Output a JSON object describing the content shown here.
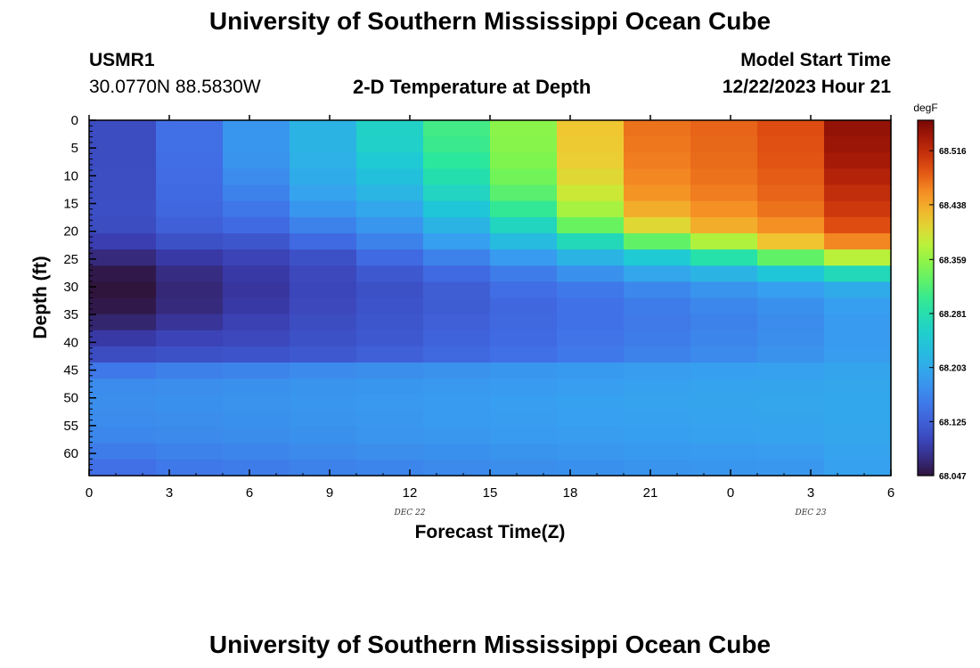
{
  "title": "University of Southern Mississippi Ocean Cube",
  "title_bottom": "University of Southern Mississippi Ocean Cube",
  "station": {
    "name": "USMR1",
    "coords": "30.0770N  88.5830W"
  },
  "plot_title": "2-D Temperature at Depth",
  "model_start": {
    "label": "Model Start Time",
    "value": "12/22/2023 Hour 21"
  },
  "chart_data": {
    "type": "heatmap",
    "title": "2-D Temperature at Depth",
    "xlabel": "Forecast Time(Z)",
    "ylabel": "Depth (ft)",
    "units": "degF",
    "x_tick_labels": [
      "0",
      "3",
      "6",
      "9",
      "12",
      "15",
      "18",
      "21",
      "0",
      "3",
      "6"
    ],
    "date_labels": [
      {
        "text": "DEC 22",
        "at_tick": 4
      },
      {
        "text": "DEC 23",
        "at_tick": 9
      }
    ],
    "y_tick_labels": [
      "0",
      "5",
      "10",
      "15",
      "20",
      "25",
      "30",
      "35",
      "40",
      "45",
      "50",
      "55",
      "60"
    ],
    "ylim": [
      0,
      64
    ],
    "colorbar": {
      "min": 68.047,
      "max": 68.56,
      "ticks": [
        "68.516",
        "68.438",
        "68.359",
        "68.281",
        "68.203",
        "68.125",
        "68.047"
      ]
    },
    "columns": 12,
    "rows": 22,
    "values": [
      [
        68.105,
        68.14,
        68.18,
        68.215,
        68.258,
        68.31,
        68.355,
        68.418,
        68.47,
        68.478,
        68.49,
        68.545
      ],
      [
        68.105,
        68.14,
        68.18,
        68.215,
        68.255,
        68.305,
        68.352,
        68.415,
        68.468,
        68.476,
        68.488,
        68.54
      ],
      [
        68.105,
        68.138,
        68.178,
        68.212,
        68.245,
        68.295,
        68.348,
        68.412,
        68.465,
        68.474,
        68.486,
        68.535
      ],
      [
        68.106,
        68.137,
        68.17,
        68.205,
        68.232,
        68.28,
        68.34,
        68.405,
        68.46,
        68.47,
        68.482,
        68.525
      ],
      [
        68.107,
        68.135,
        68.16,
        68.195,
        68.218,
        68.262,
        68.325,
        68.392,
        68.452,
        68.465,
        68.478,
        68.515
      ],
      [
        68.108,
        68.132,
        68.148,
        68.18,
        68.2,
        68.24,
        68.3,
        68.37,
        68.435,
        68.455,
        68.47,
        68.505
      ],
      [
        68.105,
        68.125,
        68.135,
        68.16,
        68.18,
        68.215,
        68.265,
        68.335,
        68.405,
        68.435,
        68.455,
        68.49
      ],
      [
        68.09,
        68.11,
        68.115,
        68.135,
        68.16,
        68.19,
        68.225,
        68.27,
        68.33,
        68.375,
        68.42,
        68.46
      ],
      [
        68.07,
        68.085,
        68.095,
        68.11,
        68.135,
        68.16,
        68.185,
        68.215,
        68.245,
        68.285,
        68.33,
        68.38
      ],
      [
        68.052,
        68.072,
        68.085,
        68.1,
        68.118,
        68.135,
        68.155,
        68.175,
        68.198,
        68.215,
        68.24,
        68.27
      ],
      [
        68.047,
        68.068,
        68.082,
        68.098,
        68.11,
        68.123,
        68.138,
        68.15,
        68.165,
        68.178,
        68.19,
        68.205
      ],
      [
        68.052,
        68.07,
        68.085,
        68.1,
        68.112,
        68.122,
        68.132,
        68.142,
        68.155,
        68.165,
        68.175,
        68.19
      ],
      [
        68.065,
        68.08,
        68.092,
        68.105,
        68.115,
        68.125,
        68.133,
        68.142,
        68.152,
        68.16,
        68.17,
        68.185
      ],
      [
        68.085,
        68.095,
        68.1,
        68.11,
        68.118,
        68.128,
        68.135,
        68.145,
        68.155,
        68.163,
        68.172,
        68.186
      ],
      [
        68.105,
        68.11,
        68.112,
        68.118,
        68.125,
        68.133,
        68.14,
        68.15,
        68.16,
        68.168,
        68.176,
        68.188
      ],
      [
        68.15,
        68.158,
        68.162,
        68.168,
        68.172,
        68.176,
        68.18,
        68.184,
        68.188,
        68.19,
        68.192,
        68.196
      ],
      [
        68.17,
        68.172,
        68.175,
        68.178,
        68.18,
        68.183,
        68.186,
        68.189,
        68.192,
        68.194,
        68.196,
        68.198
      ],
      [
        68.172,
        68.174,
        68.177,
        68.18,
        68.183,
        68.186,
        68.189,
        68.192,
        68.194,
        68.196,
        68.198,
        68.2
      ],
      [
        68.17,
        68.172,
        68.175,
        68.178,
        68.182,
        68.185,
        68.188,
        68.191,
        68.193,
        68.195,
        68.197,
        68.199
      ],
      [
        68.165,
        68.168,
        68.171,
        68.175,
        68.179,
        68.182,
        68.185,
        68.188,
        68.19,
        68.192,
        68.194,
        68.198
      ],
      [
        68.155,
        68.16,
        68.164,
        68.168,
        68.172,
        68.175,
        68.178,
        68.181,
        68.184,
        68.186,
        68.188,
        68.195
      ],
      [
        68.14,
        68.15,
        68.155,
        68.16,
        68.164,
        68.168,
        68.172,
        68.175,
        68.178,
        68.18,
        68.182,
        68.192
      ]
    ]
  }
}
